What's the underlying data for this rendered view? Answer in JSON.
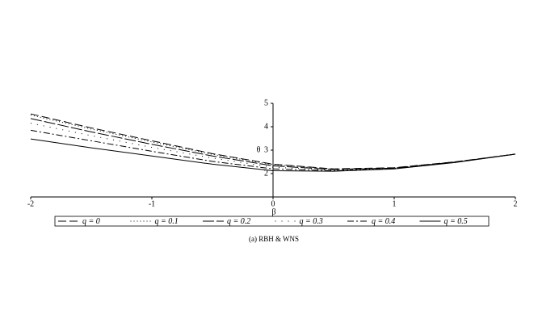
{
  "chart_data": {
    "type": "line",
    "x_label": "β",
    "y_label": "θ",
    "caption": "(a) RBH & WNS",
    "x": [
      -2,
      -1.5,
      -1,
      -0.5,
      0,
      0.5,
      1,
      1.5,
      2
    ],
    "xlim": [
      -2,
      2
    ],
    "xticks": [
      -2,
      -1,
      0,
      1,
      2
    ],
    "ylim": [
      1,
      5
    ],
    "yticks": [
      2,
      3,
      4,
      5
    ],
    "series": [
      {
        "name": "q = 0",
        "color": "#000000",
        "dash": "10,4",
        "values": [
          4.55,
          3.95,
          3.4,
          2.85,
          2.4,
          2.2,
          2.25,
          2.5,
          2.83
        ]
      },
      {
        "name": "q = 0.1",
        "color": "#000000",
        "dash": "1,3",
        "values": [
          4.5,
          3.9,
          3.35,
          2.82,
          2.38,
          2.19,
          2.24,
          2.5,
          2.83
        ]
      },
      {
        "name": "q = 0.2",
        "color": "#000000",
        "dash": "14,3",
        "values": [
          4.35,
          3.78,
          3.25,
          2.75,
          2.33,
          2.17,
          2.23,
          2.49,
          2.83
        ]
      },
      {
        "name": "q = 0.3",
        "color": "#000000",
        "dash": "1,7",
        "values": [
          4.15,
          3.62,
          3.12,
          2.66,
          2.27,
          2.14,
          2.22,
          2.49,
          2.83
        ]
      },
      {
        "name": "q = 0.4",
        "color": "#000000",
        "dash": "8,3,2,3",
        "values": [
          3.85,
          3.4,
          2.95,
          2.52,
          2.2,
          2.12,
          2.21,
          2.48,
          2.83
        ]
      },
      {
        "name": "q = 0.5",
        "color": "#000000",
        "dash": "",
        "values": [
          3.48,
          3.1,
          2.75,
          2.4,
          2.12,
          2.1,
          2.2,
          2.47,
          2.83
        ]
      }
    ]
  }
}
